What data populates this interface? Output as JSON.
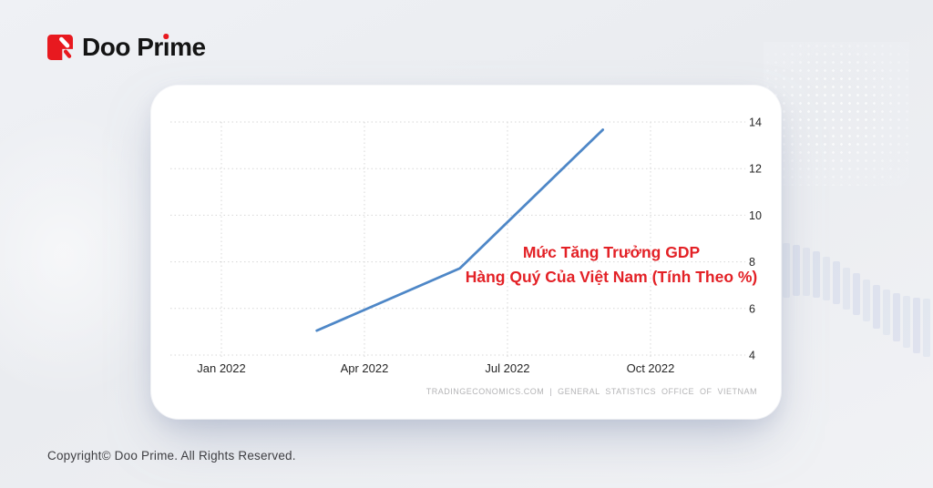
{
  "page": {
    "background_color": "#edeff3",
    "copyright": "Copyright© Doo Prime. All Rights Reserved."
  },
  "header": {
    "brand_name": "Doo Prime",
    "brand_parts": [
      "Doo Pr",
      "ı",
      "me"
    ],
    "brand_color": "#e8191f"
  },
  "chart_data": {
    "type": "line",
    "annotation_lines": [
      "Mức Tăng Trưởng GDP",
      "Hàng Quý Của Việt Nam (Tính Theo %)"
    ],
    "annotation_color": "#e32126",
    "line_color": "#4e87c7",
    "grid": true,
    "ylim": [
      4,
      14
    ],
    "y_ticks": [
      4,
      6,
      8,
      10,
      12,
      14
    ],
    "x_ticks": [
      {
        "label": "Jan 2022",
        "month": 0
      },
      {
        "label": "Apr 2022",
        "month": 3
      },
      {
        "label": "Jul 2022",
        "month": 6
      },
      {
        "label": "Oct 2022",
        "month": 9
      }
    ],
    "series": [
      {
        "name": "Vietnam quarterly GDP growth (%)",
        "points": [
          {
            "label": "Mar 2022",
            "month": 2,
            "value": 5.05
          },
          {
            "label": "Jun 2022",
            "month": 5,
            "value": 7.72
          },
          {
            "label": "Sep 2022",
            "month": 8,
            "value": 13.67
          }
        ]
      }
    ],
    "source_attribution": "TRADINGECONOMICS.COM | GENERAL STATISTICS OFFICE OF VIETNAM"
  }
}
